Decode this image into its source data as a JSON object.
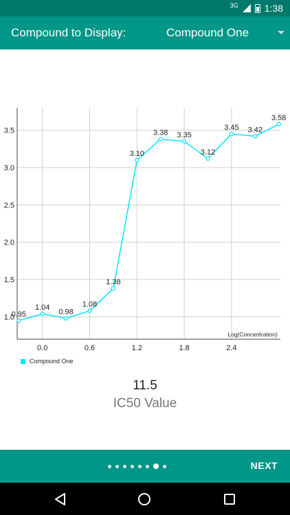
{
  "status_bar": {
    "network": "3G",
    "time": "1:38"
  },
  "toolbar": {
    "label": "Compound to Display:",
    "selected_compound": "Compound One"
  },
  "chart_data": {
    "type": "line",
    "x": [
      -0.3,
      0.0,
      0.3,
      0.6,
      0.9,
      1.2,
      1.5,
      1.8,
      2.1,
      2.4,
      2.7,
      3.0
    ],
    "series": [
      {
        "name": "Compound One",
        "values": [
          0.95,
          1.04,
          0.98,
          1.08,
          1.38,
          3.1,
          3.38,
          3.35,
          3.12,
          3.45,
          3.42,
          3.58
        ],
        "labels": [
          "0.95",
          "1.04",
          "0.98",
          "1.08",
          "1.38",
          "3.10",
          "3.38",
          "3.35",
          "3.12",
          "3.45",
          "3.42",
          "3.58"
        ],
        "color": "#00e5ff"
      }
    ],
    "x_ticks": [
      "0.0",
      "0.6",
      "1.2",
      "1.8",
      "2.4"
    ],
    "y_ticks": [
      "1.0",
      "1.5",
      "2.0",
      "2.5",
      "3.0",
      "3.5"
    ],
    "xlabel": "Log(Concentration)",
    "ylabel": "",
    "xlim": [
      -0.32,
      3.02
    ],
    "ylim": [
      0.7,
      3.8
    ],
    "grid": true,
    "legend": "bottom-left"
  },
  "result": {
    "value": "11.5",
    "caption": "IC50 Value"
  },
  "footer": {
    "next_label": "NEXT",
    "page_count": 8,
    "active_page": 7
  }
}
